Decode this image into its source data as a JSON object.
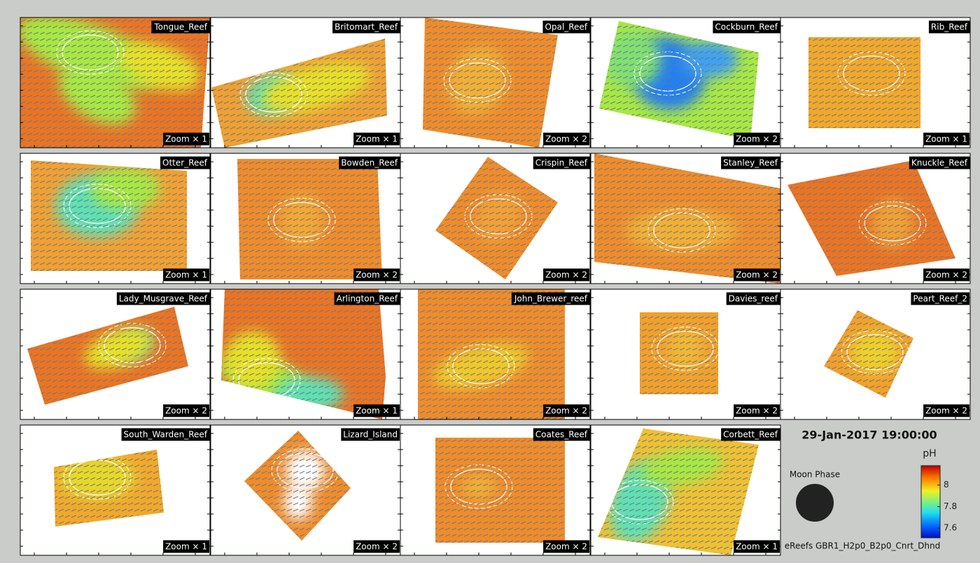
{
  "panels": [
    {
      "name": "Tongue_Reef",
      "zoom": "Zoom × 1"
    },
    {
      "name": "Britomart_Reef",
      "zoom": "Zoom × 1"
    },
    {
      "name": "Opal_Reef",
      "zoom": "Zoom × 2"
    },
    {
      "name": "Cockburn_Reef",
      "zoom": "Zoom × 2"
    },
    {
      "name": "Rib_Reef",
      "zoom": "Zoom × 1"
    },
    {
      "name": "Otter_Reef",
      "zoom": "Zoom × 1"
    },
    {
      "name": "Bowden_Reef",
      "zoom": "Zoom × 2"
    },
    {
      "name": "Crispin_Reef",
      "zoom": "Zoom × 2"
    },
    {
      "name": "Stanley_Reef",
      "zoom": "Zoom × 2"
    },
    {
      "name": "Knuckle_Reef",
      "zoom": "Zoom × 2"
    },
    {
      "name": "Lady_Musgrave_Reef",
      "zoom": "Zoom × 2"
    },
    {
      "name": "Arlington_Reef",
      "zoom": "Zoom × 1"
    },
    {
      "name": "John_Brewer_reef",
      "zoom": "Zoom × 2"
    },
    {
      "name": "Davies_reef",
      "zoom": "Zoom × 2"
    },
    {
      "name": "Peart_Reef_2",
      "zoom": "Zoom × 2"
    },
    {
      "name": "South_Warden_Reef",
      "zoom": "Zoom × 1"
    },
    {
      "name": "Lizard_Island",
      "zoom": "Zoom × 2"
    },
    {
      "name": "Coates_Reef",
      "zoom": "Zoom × 2"
    },
    {
      "name": "Corbett_Reef",
      "zoom": "Zoom × 1"
    }
  ],
  "timestamp": "29-Jan-2017 19:00:00",
  "moon_phase_label": "Moon Phase",
  "colorbar": {
    "label": "pH",
    "lim": [
      7.51,
      8.18
    ],
    "ticks": [
      7.6,
      7.8,
      8
    ]
  },
  "footer": "eReefs GBR1_H2p0_B2p0_Cnrt_Dhnd"
}
